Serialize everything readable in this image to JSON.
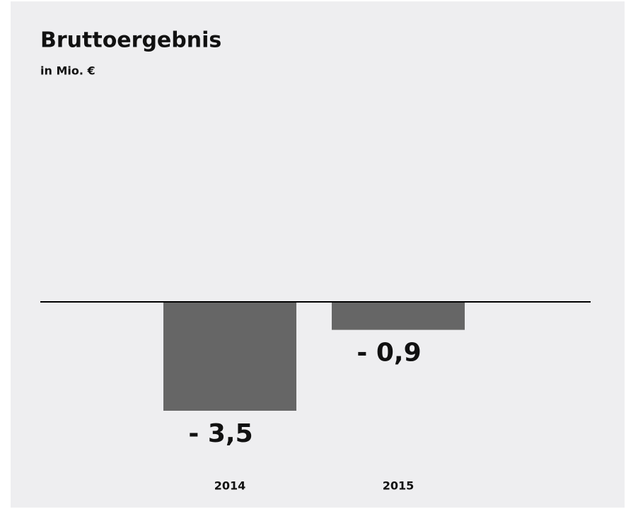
{
  "chart_data": {
    "type": "bar",
    "title": "Bruttoergebnis",
    "subtitle": "in Mio. €",
    "categories": [
      "2014",
      "2015"
    ],
    "values": [
      -3.5,
      -0.9
    ],
    "value_labels": [
      "- 3,5",
      "- 0,9"
    ],
    "color": "#666666",
    "ylim": [
      -5,
      7
    ]
  }
}
